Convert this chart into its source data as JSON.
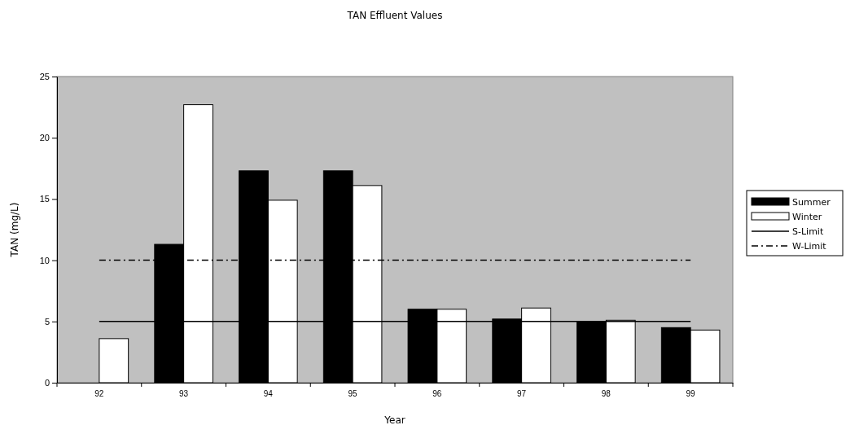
{
  "chart_data": {
    "type": "bar",
    "title": "TAN Effluent Values",
    "xlabel": "Year",
    "ylabel": "TAN (mg/L)",
    "categories": [
      "92",
      "93",
      "94",
      "95",
      "96",
      "97",
      "98",
      "99"
    ],
    "series": [
      {
        "name": "Summer",
        "color": "#000000",
        "values": [
          null,
          11.3,
          17.3,
          17.3,
          6.0,
          5.2,
          5.0,
          4.5
        ]
      },
      {
        "name": "Winter",
        "color": "#ffffff",
        "values": [
          3.6,
          22.7,
          14.9,
          16.1,
          6.0,
          6.1,
          5.1,
          4.3
        ]
      },
      {
        "name": "S-Limit",
        "type": "line",
        "color": "#000000",
        "line_style": "solid",
        "values": [
          5,
          5,
          5,
          5,
          5,
          5,
          5,
          5
        ]
      },
      {
        "name": "W-Limit",
        "type": "line",
        "color": "#000000",
        "line_style": "dashed",
        "values": [
          10,
          10,
          10,
          10,
          10,
          10,
          10,
          10
        ]
      }
    ],
    "ylim": [
      0,
      25
    ],
    "yticks": [
      0,
      5,
      10,
      15,
      20,
      25
    ],
    "grid": false,
    "legend": "right"
  }
}
